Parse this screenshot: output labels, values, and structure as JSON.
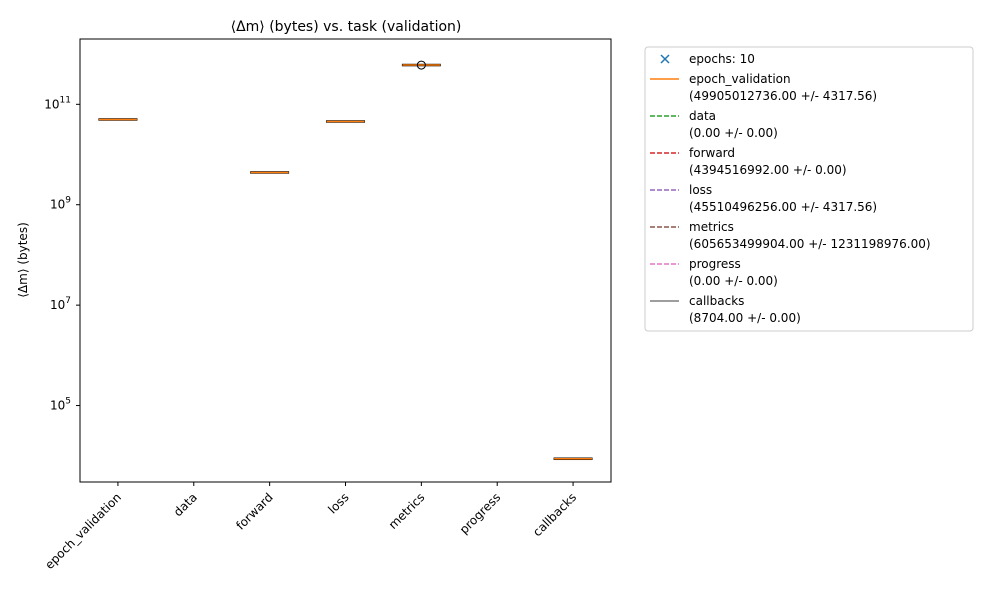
{
  "chart_data": {
    "type": "box",
    "title": "⟨Δm⟩ (bytes) vs. task (validation)",
    "xlabel": "",
    "ylabel": "⟨Δm⟩ (bytes)",
    "yscale": "log",
    "ylim": [
      3000,
      2000000000000
    ],
    "yticks": [
      {
        "value": 100000,
        "base": "10",
        "exp": "5"
      },
      {
        "value": 10000000,
        "base": "10",
        "exp": "7"
      },
      {
        "value": 1000000000,
        "base": "10",
        "exp": "9"
      },
      {
        "value": 100000000000,
        "base": "10",
        "exp": "11"
      }
    ],
    "categories": [
      "epoch_validation",
      "data",
      "forward",
      "loss",
      "metrics",
      "progress",
      "callbacks"
    ],
    "boxes": [
      {
        "category": "epoch_validation",
        "median": 49905012736,
        "q1": 49905008418,
        "q3": 49905017054,
        "outliers": []
      },
      {
        "category": "data",
        "median": 0,
        "q1": 0,
        "q3": 0,
        "outliers": []
      },
      {
        "category": "forward",
        "median": 4394516992,
        "q1": 4394516992,
        "q3": 4394516992,
        "outliers": []
      },
      {
        "category": "loss",
        "median": 45510496256,
        "q1": 45510491938,
        "q3": 45510500574,
        "outliers": []
      },
      {
        "category": "metrics",
        "median": 605653499904,
        "q1": 605653499904,
        "q3": 605653499904,
        "outliers": [
          605000000000
        ]
      },
      {
        "category": "progress",
        "median": 0,
        "q1": 0,
        "q3": 0,
        "outliers": []
      },
      {
        "category": "callbacks",
        "median": 8704,
        "q1": 8704,
        "q3": 8704,
        "outliers": []
      }
    ],
    "legend": {
      "placement": "outside-upper-right",
      "entries": [
        {
          "label": "epochs: 10",
          "marker": "x",
          "color": "#1f77b4"
        },
        {
          "label": "epoch_validation\n(49905012736.00 +/- 4317.56)",
          "line": "solid",
          "color": "#ff7f0e"
        },
        {
          "label": "data\n(0.00 +/- 0.00)",
          "line": "dashed",
          "color": "#2ca02c"
        },
        {
          "label": "forward\n(4394516992.00 +/- 0.00)",
          "line": "dashed",
          "color": "#d62728"
        },
        {
          "label": "loss\n(45510496256.00 +/- 4317.56)",
          "line": "dashed",
          "color": "#9467bd"
        },
        {
          "label": "metrics\n(605653499904.00 +/- 1231198976.00)",
          "line": "dashed",
          "color": "#8c564b"
        },
        {
          "label": "progress\n(0.00 +/- 0.00)",
          "line": "dashed",
          "color": "#e377c2"
        },
        {
          "label": "callbacks\n(8704.00 +/- 0.00)",
          "line": "solid",
          "color": "#7f7f7f"
        }
      ]
    },
    "colors": {
      "median": "#ff7f0e",
      "box": "#000000",
      "outlier": "#000000"
    }
  }
}
